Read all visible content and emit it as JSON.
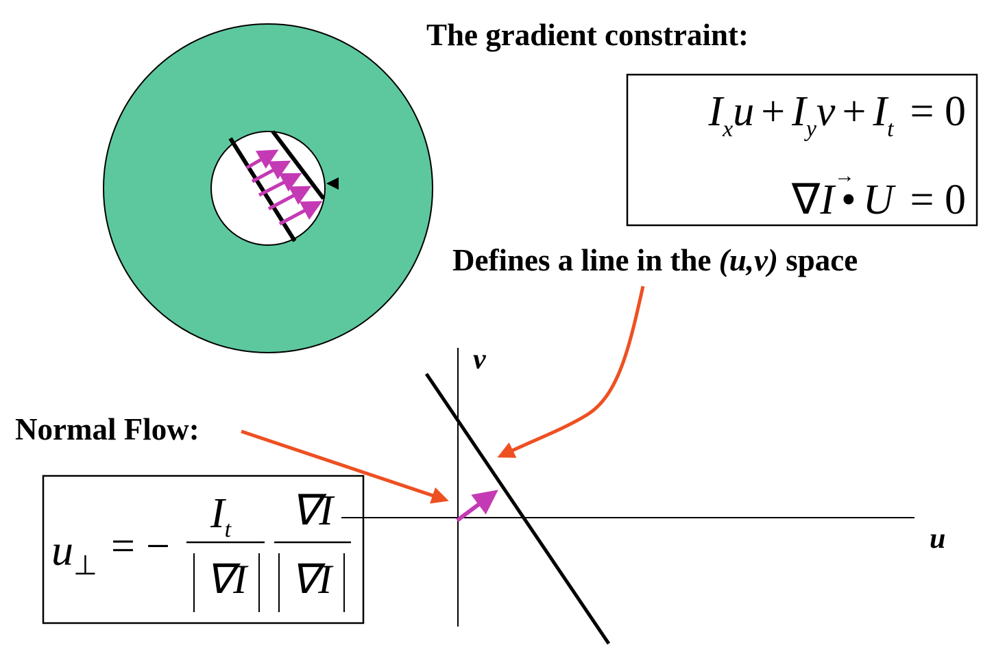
{
  "colors": {
    "annulus": "#5DC89E",
    "arrow": "#C43AB4",
    "pointer": "#EE5022",
    "line": "#000000"
  },
  "title": "The gradient constraint:",
  "constraint_box": {
    "eq1": {
      "Ix": "I",
      "x_sub": "x",
      "u": "u",
      "plus1": "+",
      "Iy": "I",
      "y_sub": "y",
      "v": "v",
      "plus2": "+",
      "It": "I",
      "t_sub": "t",
      "eq": "= 0"
    },
    "eq2": {
      "nabla": "∇",
      "I": "I",
      "dot": "•",
      "U": "U",
      "vec_arrow": "→",
      "eq": "= 0"
    }
  },
  "defines_label": {
    "pre": "Defines a line in the ",
    "italic": "(u,v)",
    "post": " space"
  },
  "normal_flow_label": "Normal Flow:",
  "normal_flow_box": {
    "u": "u",
    "perp": "⊥",
    "eq": "=",
    "minus": "−",
    "num1": "I",
    "num1_sub": "t",
    "den1": "∇I",
    "num2": "∇I",
    "den2": "∇I"
  },
  "axes": {
    "v_label": "v",
    "u_label": "u"
  }
}
